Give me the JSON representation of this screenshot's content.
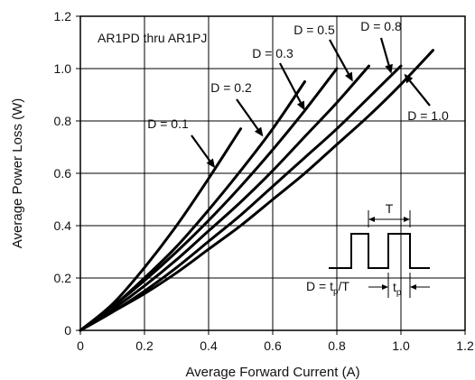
{
  "chart_data": {
    "type": "line",
    "title": "",
    "device_label": "AR1PD thru AR1PJ",
    "xlabel": "Average Forward Current (A)",
    "ylabel": "Average Power Loss (W)",
    "xlim": [
      0,
      1.2
    ],
    "ylim": [
      0,
      1.2
    ],
    "xticks": [
      "0",
      "0.2",
      "0.4",
      "0.6",
      "0.8",
      "1.0",
      "1.2"
    ],
    "yticks": [
      "0",
      "0.2",
      "0.4",
      "0.6",
      "0.8",
      "1.0",
      "1.2"
    ],
    "grid": true,
    "series": [
      {
        "name": "D = 0.1",
        "x": [
          0,
          0.1,
          0.2,
          0.3,
          0.4,
          0.5
        ],
        "y": [
          0,
          0.1,
          0.24,
          0.4,
          0.58,
          0.77
        ]
      },
      {
        "name": "D = 0.2",
        "x": [
          0,
          0.1,
          0.2,
          0.3,
          0.4,
          0.5,
          0.6,
          0.7
        ],
        "y": [
          0,
          0.09,
          0.2,
          0.32,
          0.46,
          0.61,
          0.77,
          0.95
        ]
      },
      {
        "name": "D = 0.3",
        "x": [
          0,
          0.1,
          0.2,
          0.3,
          0.4,
          0.5,
          0.6,
          0.7,
          0.8
        ],
        "y": [
          0,
          0.09,
          0.19,
          0.3,
          0.42,
          0.55,
          0.69,
          0.84,
          1.0
        ]
      },
      {
        "name": "D = 0.5",
        "x": [
          0,
          0.1,
          0.2,
          0.3,
          0.4,
          0.5,
          0.6,
          0.7,
          0.8,
          0.9
        ],
        "y": [
          0,
          0.08,
          0.17,
          0.27,
          0.38,
          0.49,
          0.61,
          0.74,
          0.87,
          1.01
        ]
      },
      {
        "name": "D = 0.8",
        "x": [
          0,
          0.1,
          0.2,
          0.3,
          0.4,
          0.5,
          0.6,
          0.7,
          0.8,
          0.9,
          1.0
        ],
        "y": [
          0,
          0.07,
          0.15,
          0.24,
          0.34,
          0.44,
          0.55,
          0.66,
          0.77,
          0.89,
          1.01
        ]
      },
      {
        "name": "D = 1.0",
        "x": [
          0,
          0.1,
          0.2,
          0.3,
          0.4,
          0.5,
          0.6,
          0.7,
          0.8,
          0.9,
          1.0,
          1.1
        ],
        "y": [
          0,
          0.07,
          0.14,
          0.22,
          0.31,
          0.4,
          0.5,
          0.6,
          0.71,
          0.82,
          0.94,
          1.07
        ]
      }
    ],
    "annotations": [
      {
        "text": "D = 0.1",
        "target": [
          0.42,
          0.62
        ]
      },
      {
        "text": "D = 0.2",
        "target": [
          0.57,
          0.74
        ]
      },
      {
        "text": "D = 0.3",
        "target": [
          0.7,
          0.84
        ]
      },
      {
        "text": "D = 0.5",
        "target": [
          0.85,
          0.95
        ]
      },
      {
        "text": "D = 0.8",
        "target": [
          0.97,
          0.98
        ]
      },
      {
        "text": "D = 1.0",
        "target": [
          1.01,
          0.98
        ]
      }
    ],
    "inset": {
      "period_label": "T",
      "formula_lhs": "D = t",
      "formula_sub": "p",
      "formula_rhs": "/T",
      "pulse_lhs": "t",
      "pulse_sub": "p"
    }
  }
}
